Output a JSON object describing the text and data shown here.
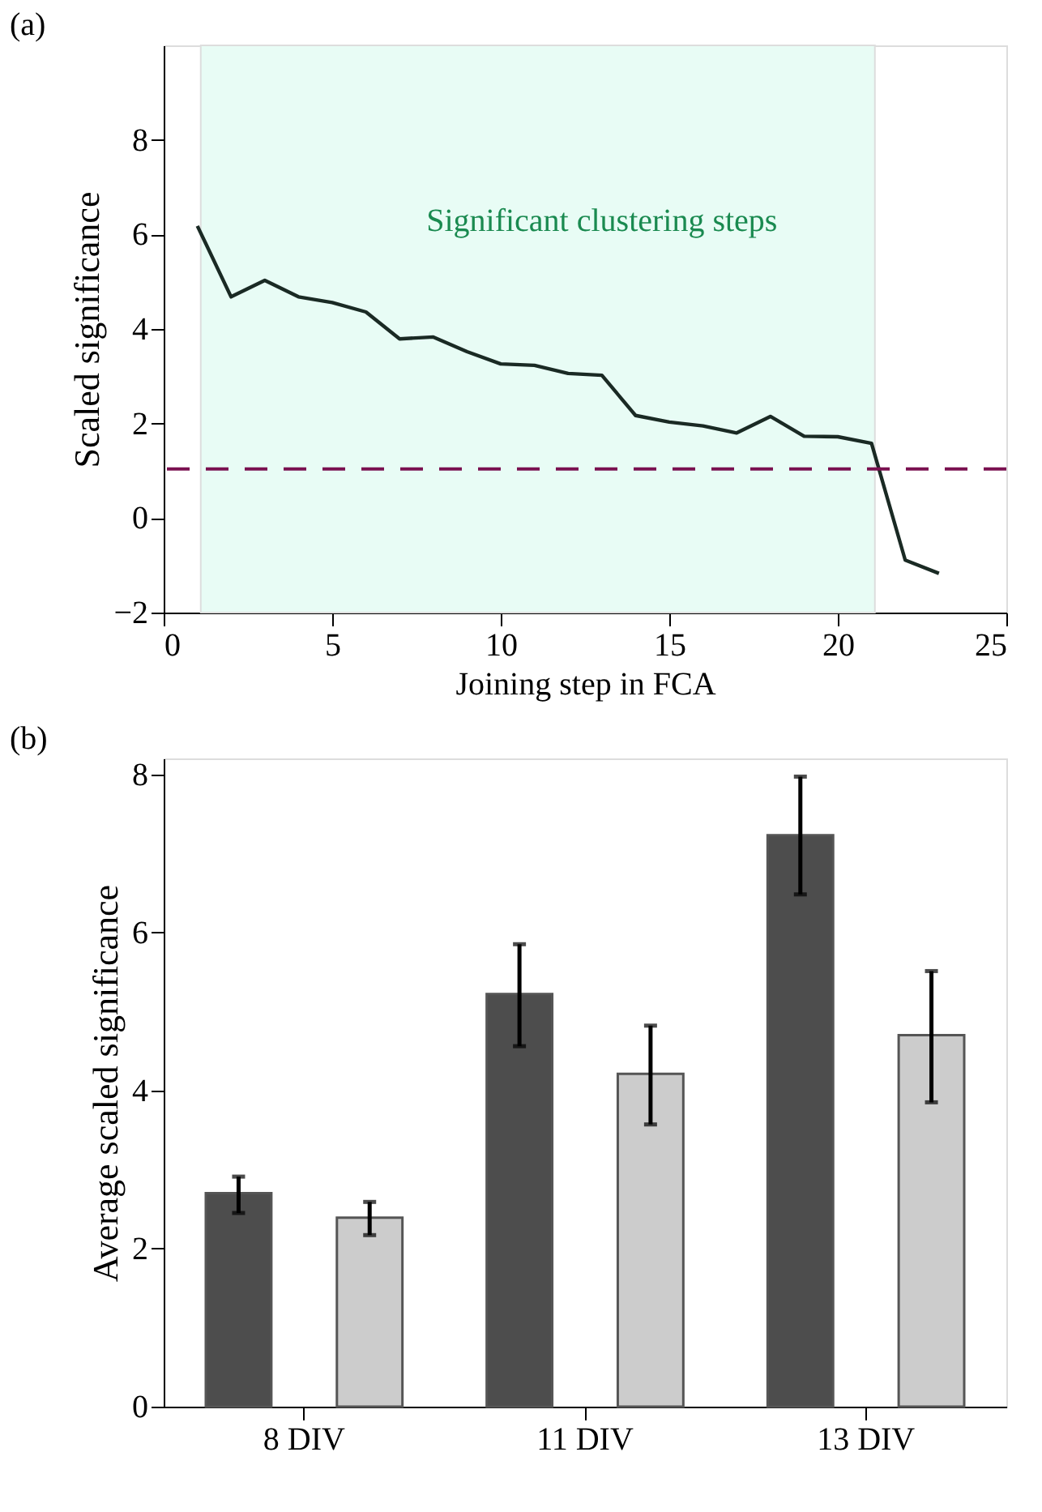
{
  "chart_data": [
    {
      "type": "line",
      "title": "(a)",
      "xlabel": "Joining step in FCA",
      "ylabel": "Scaled significance",
      "x": [
        1,
        2,
        3,
        4,
        5,
        6,
        7,
        8,
        9,
        10,
        11,
        12,
        13,
        14,
        15,
        16,
        17,
        18,
        19,
        20,
        21,
        22,
        23
      ],
      "series": [
        {
          "color": "#1a2a24",
          "values": [
            6.18,
            4.68,
            5.03,
            4.68,
            4.56,
            4.36,
            3.79,
            3.83,
            3.52,
            3.26,
            3.23,
            3.06,
            3.02,
            2.17,
            2.03,
            1.95,
            1.8,
            2.15,
            1.73,
            1.72,
            1.58,
            -0.89,
            -1.17
          ]
        }
      ],
      "xlim": [
        0,
        25
      ],
      "xticks": [
        0,
        5,
        10,
        15,
        20,
        25
      ],
      "ylim": [
        -2,
        10
      ],
      "yticks": [
        -2,
        0,
        2,
        4,
        6,
        8
      ],
      "ref_lines": [
        {
          "axis": "y",
          "value": 1.04,
          "color": "#7a1050",
          "line_style": "dashed"
        }
      ],
      "bands": [
        {
          "axis": "x",
          "from": 1.1,
          "to": 21.1,
          "color": "#e8fcf5"
        }
      ],
      "annotations": [
        "Significant clustering steps"
      ]
    },
    {
      "type": "bar",
      "title": "(b)",
      "ylabel": "Average scaled significance",
      "categories": [
        "8 DIV",
        "11 DIV",
        "13 DIV"
      ],
      "series": [
        {
          "color": "#4d4d4d",
          "values": [
            2.7,
            5.22,
            7.23
          ],
          "errors": [
            [
              2.45,
              2.91
            ],
            [
              4.56,
              5.85
            ],
            [
              6.48,
              7.97
            ]
          ]
        },
        {
          "color": "#cccccc",
          "values": [
            2.39,
            4.21,
            4.7
          ],
          "errors": [
            [
              2.17,
              2.59
            ],
            [
              3.57,
              4.82
            ],
            [
              3.85,
              5.51
            ]
          ]
        }
      ],
      "ylim": [
        0,
        8.2
      ],
      "yticks": [
        0,
        2,
        4,
        6,
        8
      ]
    }
  ]
}
